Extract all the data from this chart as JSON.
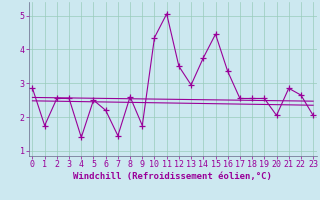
{
  "xlabel": "Windchill (Refroidissement éolien,°C)",
  "background_color": "#cce8f0",
  "line_color": "#990099",
  "x_values": [
    0,
    1,
    2,
    3,
    4,
    5,
    6,
    7,
    8,
    9,
    10,
    11,
    12,
    13,
    14,
    15,
    16,
    17,
    18,
    19,
    20,
    21,
    22,
    23
  ],
  "y_values": [
    2.85,
    1.75,
    2.55,
    2.55,
    1.4,
    2.5,
    2.2,
    1.45,
    2.6,
    1.75,
    4.35,
    5.05,
    3.5,
    2.95,
    3.75,
    4.45,
    3.35,
    2.55,
    2.55,
    2.55,
    2.05,
    2.85,
    2.65,
    2.05
  ],
  "trend1_x": [
    0,
    23
  ],
  "trend1_y": [
    2.58,
    2.47
  ],
  "trend2_x": [
    0,
    23
  ],
  "trend2_y": [
    2.48,
    2.35
  ],
  "ylim": [
    0.85,
    5.4
  ],
  "xlim": [
    -0.3,
    23.3
  ],
  "yticks": [
    1,
    2,
    3,
    4,
    5
  ],
  "xticks": [
    0,
    1,
    2,
    3,
    4,
    5,
    6,
    7,
    8,
    9,
    10,
    11,
    12,
    13,
    14,
    15,
    16,
    17,
    18,
    19,
    20,
    21,
    22,
    23
  ],
  "grid_color": "#99ccbb",
  "marker": "+",
  "markersize": 4,
  "linewidth": 0.8,
  "xlabel_fontsize": 6.5,
  "tick_fontsize": 6.0
}
